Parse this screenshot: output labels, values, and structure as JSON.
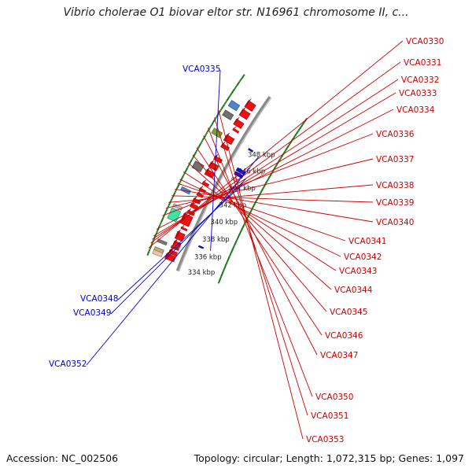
{
  "title": "Vibrio cholerae O1 biovar eltor str. N16961 chromosome II, c...",
  "footer": {
    "accession": "Accession: NC_002506",
    "summary": "Topology: circular; Length: 1,072,315 bp; Genes: 1,097"
  },
  "colors": {
    "backbone": "#8a8a8a",
    "tick": "#1f7a1f",
    "gene_red": "#ee1111",
    "gene_blue": "#1111dd",
    "label_right": "#cc0000",
    "label_left": "#0000cc"
  },
  "scale_ticks": [
    {
      "label": "334 kbp"
    },
    {
      "label": "336 kbp"
    },
    {
      "label": "338 kbp"
    },
    {
      "label": "340 kbp"
    },
    {
      "label": "342 kbp"
    },
    {
      "label": "344 kbp"
    },
    {
      "label": "346 kbp"
    },
    {
      "label": "348 kbp"
    }
  ],
  "genes_right": [
    {
      "label": "VCA0330"
    },
    {
      "label": "VCA0331"
    },
    {
      "label": "VCA0332"
    },
    {
      "label": "VCA0333"
    },
    {
      "label": "VCA0334"
    },
    {
      "label": "VCA0336"
    },
    {
      "label": "VCA0337"
    },
    {
      "label": "VCA0338"
    },
    {
      "label": "VCA0339"
    },
    {
      "label": "VCA0340"
    },
    {
      "label": "VCA0341"
    },
    {
      "label": "VCA0342"
    },
    {
      "label": "VCA0343"
    },
    {
      "label": "VCA0344"
    },
    {
      "label": "VCA0345"
    },
    {
      "label": "VCA0346"
    },
    {
      "label": "VCA0347"
    },
    {
      "label": "VCA0350"
    },
    {
      "label": "VCA0351"
    },
    {
      "label": "VCA0353"
    }
  ],
  "genes_left": [
    {
      "label": "VCA0335"
    },
    {
      "label": "VCA0348"
    },
    {
      "label": "VCA0349"
    },
    {
      "label": "VCA0352"
    }
  ]
}
